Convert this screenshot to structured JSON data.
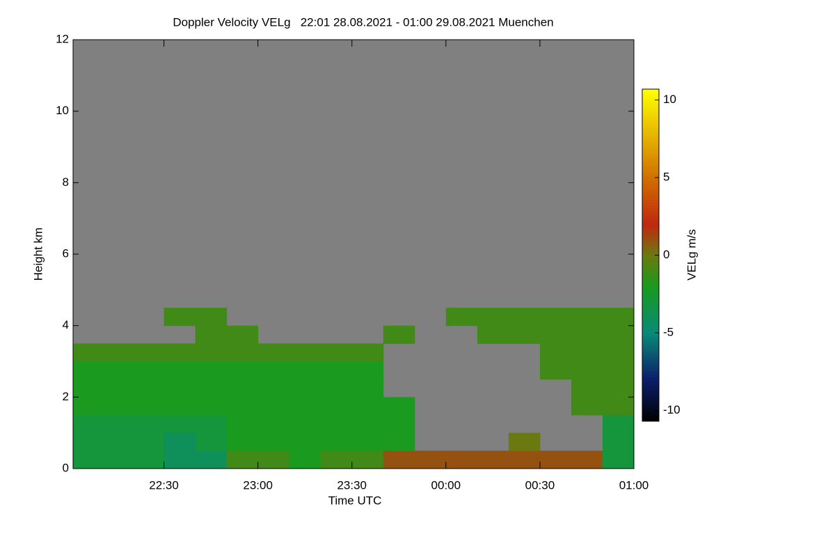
{
  "chart_data": {
    "type": "heatmap",
    "title": "Doppler Velocity VELg   22:01 28.08.2021 - 01:00 29.08.2021 Muenchen",
    "x_label": "Time UTC",
    "y_label": "Height km",
    "colorbar_label": "VELg m/s",
    "xlim": [
      22.0167,
      25.0
    ],
    "xticks": [
      {
        "value": 22.5,
        "label": "22:30"
      },
      {
        "value": 23.0,
        "label": "23:00"
      },
      {
        "value": 23.5,
        "label": "23:30"
      },
      {
        "value": 24.0,
        "label": "00:00"
      },
      {
        "value": 24.5,
        "label": "00:30"
      },
      {
        "value": 25.0,
        "label": "01:00"
      }
    ],
    "ylim": [
      0,
      12
    ],
    "yticks": [
      0,
      2,
      4,
      6,
      8,
      10,
      12
    ],
    "clim": [
      -10.7,
      10.7
    ],
    "cticks": [
      -10,
      -5,
      0,
      5,
      10
    ],
    "missing_color": "#808080",
    "colorscale": [
      [
        -10.7,
        "#000000"
      ],
      [
        -8,
        "#0c1e6a"
      ],
      [
        -5,
        "#0a8a78"
      ],
      [
        -2,
        "#1a9a1e"
      ],
      [
        0,
        "#6a7a10"
      ],
      [
        2,
        "#c02810"
      ],
      [
        5,
        "#d07000"
      ],
      [
        10.7,
        "#ffff00"
      ]
    ],
    "xbins": [
      22.0167,
      22.1667,
      22.3333,
      22.5,
      22.6667,
      22.8333,
      23.0,
      23.1667,
      23.3333,
      23.5,
      23.6667,
      23.8333,
      24.0,
      24.1667,
      24.3333,
      24.5,
      24.6667,
      24.8333,
      25.0
    ],
    "ybins": [
      0,
      0.5,
      1,
      1.5,
      2,
      2.5,
      3,
      3.5,
      4,
      4.5
    ],
    "z": [
      [
        -3,
        -3,
        -3,
        -4,
        -4,
        -1,
        -1,
        -2,
        -1,
        -1,
        1,
        1,
        1,
        1,
        1,
        1,
        1,
        -3
      ],
      [
        -3,
        -3,
        -3,
        -4,
        -3,
        -2,
        -2,
        -2,
        -2,
        -2,
        -2,
        null,
        null,
        null,
        0,
        null,
        null,
        -3
      ],
      [
        -3,
        -3,
        -3,
        -3,
        -3,
        -2,
        -2,
        -2,
        -2,
        -2,
        -2,
        null,
        null,
        null,
        null,
        null,
        null,
        -3
      ],
      [
        -2,
        -2,
        -2,
        -2,
        -2,
        -2,
        -2,
        -2,
        -2,
        -2,
        -2,
        null,
        null,
        null,
        null,
        null,
        -1,
        -1
      ],
      [
        -2,
        -2,
        -2,
        -2,
        -2,
        -2,
        -2,
        -2,
        -2,
        -2,
        null,
        null,
        null,
        null,
        null,
        null,
        -1,
        -1
      ],
      [
        -2,
        -2,
        -2,
        -2,
        -2,
        -2,
        -2,
        -2,
        -2,
        -2,
        null,
        null,
        null,
        null,
        null,
        -1,
        -1,
        -1
      ],
      [
        -1,
        -1,
        -1,
        -1,
        -1,
        -1,
        -1,
        -1,
        -1,
        -1,
        null,
        null,
        null,
        null,
        null,
        -1,
        -1,
        -1
      ],
      [
        null,
        null,
        null,
        null,
        -1,
        -1,
        null,
        null,
        null,
        null,
        -1,
        null,
        null,
        -1,
        -1,
        -1,
        -1,
        -1
      ],
      [
        null,
        null,
        null,
        -1,
        -1,
        null,
        null,
        null,
        null,
        null,
        null,
        null,
        -1,
        -1,
        -1,
        -1,
        -1,
        -1
      ]
    ]
  }
}
